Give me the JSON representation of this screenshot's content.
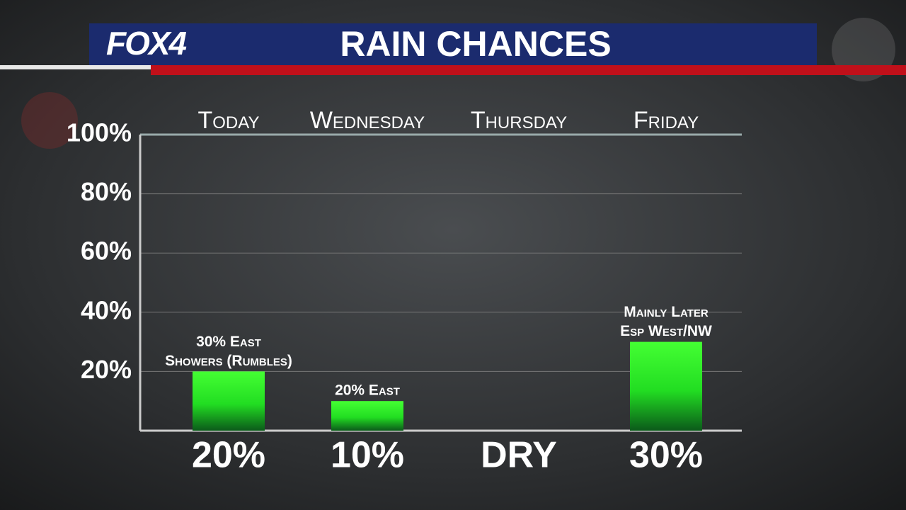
{
  "header": {
    "logo": "FOX4"
  },
  "chart_data": {
    "type": "bar",
    "title": "RAIN CHANCES",
    "categories": [
      "Today",
      "Wednesday",
      "Thursday",
      "Friday"
    ],
    "values": [
      20,
      10,
      0,
      30
    ],
    "value_labels": [
      "20%",
      "10%",
      "DRY",
      "30%"
    ],
    "annotations": [
      [
        "30% East",
        "Showers (Rumbles)"
      ],
      [
        "20% East"
      ],
      null,
      [
        "Mainly Later",
        "Esp West/NW"
      ]
    ],
    "color": "#33ee33",
    "ylim": [
      0,
      100
    ],
    "yticks": [
      {
        "value": 20,
        "label": "20%"
      },
      {
        "value": 40,
        "label": "40%"
      },
      {
        "value": 60,
        "label": "60%"
      },
      {
        "value": 80,
        "label": "80%"
      },
      {
        "value": 100,
        "label": "100%"
      }
    ],
    "grid": true
  }
}
